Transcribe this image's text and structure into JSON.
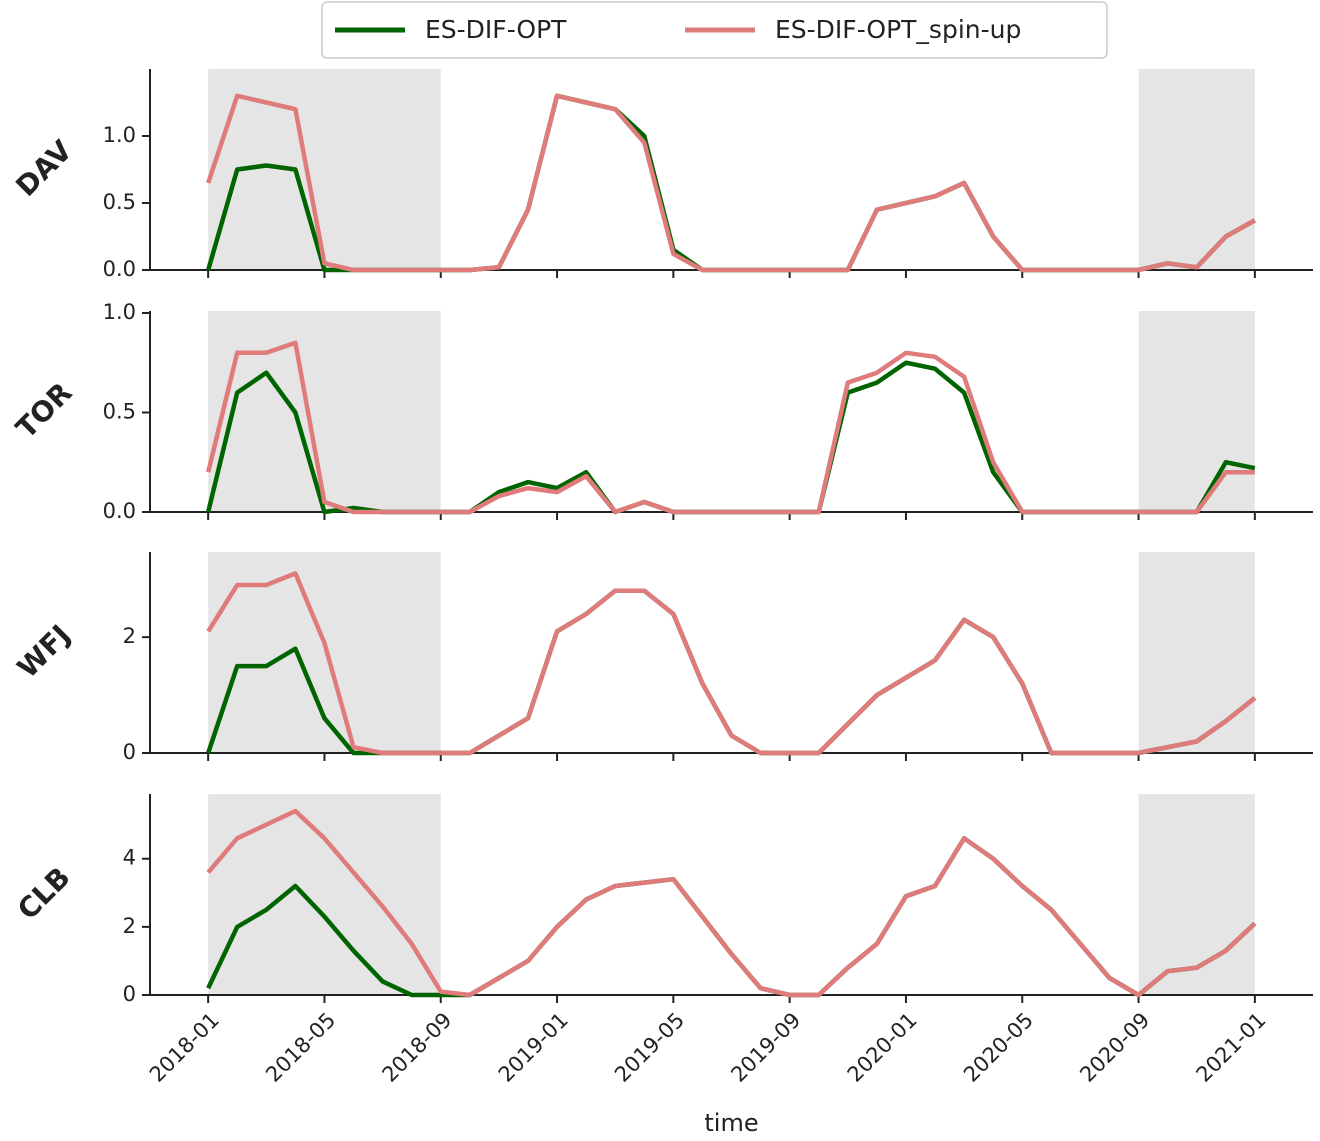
{
  "chart_data": [
    {
      "type": "line",
      "ylabel": "DAV",
      "x": [
        "2018-01",
        "2018-02",
        "2018-03",
        "2018-04",
        "2018-05",
        "2018-06",
        "2018-07",
        "2018-08",
        "2018-09",
        "2018-10",
        "2018-11",
        "2018-12",
        "2019-01",
        "2019-02",
        "2019-03",
        "2019-04",
        "2019-05",
        "2019-06",
        "2019-07",
        "2019-08",
        "2019-09",
        "2019-10",
        "2019-11",
        "2019-12",
        "2020-01",
        "2020-02",
        "2020-03",
        "2020-04",
        "2020-05",
        "2020-06",
        "2020-07",
        "2020-08",
        "2020-09",
        "2020-10",
        "2020-11",
        "2020-12",
        "2021-01"
      ],
      "series": [
        {
          "name": "ES-DIF-OPT",
          "color": "#006400",
          "values": [
            0,
            0.75,
            0.78,
            0.75,
            0,
            0,
            0,
            0,
            0,
            0,
            0.02,
            0.45,
            1.3,
            1.25,
            1.2,
            1.0,
            0.15,
            0,
            0,
            0,
            0,
            0,
            0,
            0.45,
            0.5,
            0.55,
            0.65,
            0.25,
            0,
            0,
            0,
            0,
            0,
            0.05,
            0.02,
            0.25,
            0.37
          ]
        },
        {
          "name": "ES-DIF-OPT_spin-up",
          "color": "#e07b7b",
          "values": [
            0.65,
            1.3,
            1.25,
            1.2,
            0.05,
            0,
            0,
            0,
            0,
            0,
            0.02,
            0.45,
            1.3,
            1.25,
            1.2,
            0.95,
            0.12,
            0,
            0,
            0,
            0,
            0,
            0,
            0.45,
            0.5,
            0.55,
            0.65,
            0.25,
            0,
            0,
            0,
            0,
            0,
            0.05,
            0.02,
            0.25,
            0.37
          ]
        }
      ],
      "xlim": [
        "2017-11",
        "2021-03"
      ],
      "xticks": [
        "2018-01",
        "2018-05",
        "2018-09",
        "2019-01",
        "2019-05",
        "2019-09",
        "2020-01",
        "2020-05",
        "2020-09",
        "2021-01"
      ],
      "ylim": [
        0,
        1.5
      ],
      "yticks": [
        {
          "value": 0,
          "label": "0.0"
        },
        0.5,
        {
          "value": 1,
          "label": "1.0"
        }
      ],
      "shaded_spans": [
        [
          "2018-01",
          "2018-09"
        ],
        [
          "2020-09",
          "2021-01"
        ]
      ]
    },
    {
      "type": "line",
      "ylabel": "TOR",
      "x": [
        "2018-01",
        "2018-02",
        "2018-03",
        "2018-04",
        "2018-05",
        "2018-06",
        "2018-07",
        "2018-08",
        "2018-09",
        "2018-10",
        "2018-11",
        "2018-12",
        "2019-01",
        "2019-02",
        "2019-03",
        "2019-04",
        "2019-05",
        "2019-06",
        "2019-07",
        "2019-08",
        "2019-09",
        "2019-10",
        "2019-11",
        "2019-12",
        "2020-01",
        "2020-02",
        "2020-03",
        "2020-04",
        "2020-05",
        "2020-06",
        "2020-07",
        "2020-08",
        "2020-09",
        "2020-10",
        "2020-11",
        "2020-12",
        "2021-01"
      ],
      "series": [
        {
          "color": "#006400",
          "values": [
            0,
            0.6,
            0.7,
            0.5,
            0,
            0.02,
            0,
            0,
            0,
            0,
            0.1,
            0.15,
            0.12,
            0.2,
            0,
            0.05,
            0,
            0,
            0,
            0,
            0,
            0,
            0.6,
            0.65,
            0.75,
            0.72,
            0.6,
            0.2,
            0,
            0,
            0,
            0,
            0,
            0,
            0,
            0.25,
            0.22
          ]
        },
        {
          "color": "#e07b7b",
          "values": [
            0.2,
            0.8,
            0.8,
            0.85,
            0.05,
            0,
            0,
            0,
            0,
            0,
            0.08,
            0.12,
            0.1,
            0.18,
            0,
            0.05,
            0,
            0,
            0,
            0,
            0,
            0,
            0.65,
            0.7,
            0.8,
            0.78,
            0.68,
            0.25,
            0,
            0,
            0,
            0,
            0,
            0,
            0,
            0.2,
            0.2
          ]
        }
      ],
      "xlim": [
        "2017-11",
        "2021-03"
      ],
      "xticks": [
        "2018-01",
        "2018-05",
        "2018-09",
        "2019-01",
        "2019-05",
        "2019-09",
        "2020-01",
        "2020-05",
        "2020-09",
        "2021-01"
      ],
      "ylim": [
        0,
        1.01
      ],
      "yticks": [
        {
          "value": 0,
          "label": "0.0"
        },
        0.5,
        {
          "value": 1,
          "label": "1.0"
        }
      ],
      "shaded_spans": [
        [
          "2018-01",
          "2018-09"
        ],
        [
          "2020-09",
          "2021-01"
        ]
      ]
    },
    {
      "type": "line",
      "ylabel": "WFJ",
      "x": [
        "2018-01",
        "2018-02",
        "2018-03",
        "2018-04",
        "2018-05",
        "2018-06",
        "2018-07",
        "2018-08",
        "2018-09",
        "2018-10",
        "2018-11",
        "2018-12",
        "2019-01",
        "2019-02",
        "2019-03",
        "2019-04",
        "2019-05",
        "2019-06",
        "2019-07",
        "2019-08",
        "2019-09",
        "2019-10",
        "2019-11",
        "2019-12",
        "2020-01",
        "2020-02",
        "2020-03",
        "2020-04",
        "2020-05",
        "2020-06",
        "2020-07",
        "2020-08",
        "2020-09",
        "2020-10",
        "2020-11",
        "2020-12",
        "2021-01"
      ],
      "series": [
        {
          "color": "#006400",
          "values": [
            0,
            1.5,
            1.5,
            1.8,
            0.6,
            0,
            0,
            0,
            0,
            0,
            0.3,
            0.6,
            2.1,
            2.4,
            2.8,
            2.8,
            2.4,
            1.2,
            0.3,
            0,
            0,
            0,
            0.5,
            1.0,
            1.3,
            1.6,
            2.3,
            2.0,
            1.2,
            0,
            0,
            0,
            0,
            0.1,
            0.2,
            0.55,
            0.95
          ]
        },
        {
          "color": "#e07b7b",
          "values": [
            2.1,
            2.9,
            2.9,
            3.1,
            1.9,
            0.1,
            0,
            0,
            0,
            0,
            0.3,
            0.6,
            2.1,
            2.4,
            2.8,
            2.8,
            2.4,
            1.2,
            0.3,
            0,
            0,
            0,
            0.5,
            1.0,
            1.3,
            1.6,
            2.3,
            2.0,
            1.2,
            0,
            0,
            0,
            0,
            0.1,
            0.2,
            0.55,
            0.95
          ]
        }
      ],
      "xlim": [
        "2017-11",
        "2021-03"
      ],
      "xticks": [
        "2018-01",
        "2018-05",
        "2018-09",
        "2019-01",
        "2019-05",
        "2019-09",
        "2020-01",
        "2020-05",
        "2020-09",
        "2021-01"
      ],
      "ylim": [
        0,
        3.47
      ],
      "yticks": [
        0,
        2
      ],
      "shaded_spans": [
        [
          "2018-01",
          "2018-09"
        ],
        [
          "2020-09",
          "2021-01"
        ]
      ]
    },
    {
      "type": "line",
      "ylabel": "CLB",
      "xlabel": "time",
      "x": [
        "2018-01",
        "2018-02",
        "2018-03",
        "2018-04",
        "2018-05",
        "2018-06",
        "2018-07",
        "2018-08",
        "2018-09",
        "2018-10",
        "2018-11",
        "2018-12",
        "2019-01",
        "2019-02",
        "2019-03",
        "2019-04",
        "2019-05",
        "2019-06",
        "2019-07",
        "2019-08",
        "2019-09",
        "2019-10",
        "2019-11",
        "2019-12",
        "2020-01",
        "2020-02",
        "2020-03",
        "2020-04",
        "2020-05",
        "2020-06",
        "2020-07",
        "2020-08",
        "2020-09",
        "2020-10",
        "2020-11",
        "2020-12",
        "2021-01"
      ],
      "series": [
        {
          "color": "#006400",
          "values": [
            0.2,
            2.0,
            2.5,
            3.2,
            2.3,
            1.3,
            0.4,
            0,
            0,
            0,
            0.5,
            1.0,
            2.0,
            2.8,
            3.2,
            3.3,
            3.4,
            2.3,
            1.2,
            0.2,
            0,
            0,
            0.8,
            1.5,
            2.9,
            3.2,
            4.6,
            4.0,
            3.2,
            2.5,
            1.5,
            0.5,
            0,
            0.7,
            0.8,
            1.3,
            2.1
          ]
        },
        {
          "color": "#e07b7b",
          "values": [
            3.6,
            4.6,
            5.0,
            5.4,
            4.6,
            3.6,
            2.6,
            1.5,
            0.1,
            0,
            0.5,
            1.0,
            2.0,
            2.8,
            3.2,
            3.3,
            3.4,
            2.3,
            1.2,
            0.2,
            0,
            0,
            0.8,
            1.5,
            2.9,
            3.2,
            4.6,
            4.0,
            3.2,
            2.5,
            1.5,
            0.5,
            0,
            0.7,
            0.8,
            1.3,
            2.1
          ]
        }
      ],
      "xlim": [
        "2017-11",
        "2021-03"
      ],
      "xticks": [
        "2018-01",
        "2018-05",
        "2018-09",
        "2019-01",
        "2019-05",
        "2019-09",
        "2020-01",
        "2020-05",
        "2020-09",
        "2021-01"
      ],
      "ylim": [
        0,
        5.9
      ],
      "yticks": [
        0,
        2,
        4
      ],
      "shaded_spans": [
        [
          "2018-01",
          "2018-09"
        ],
        [
          "2020-09",
          "2021-01"
        ]
      ]
    }
  ]
}
